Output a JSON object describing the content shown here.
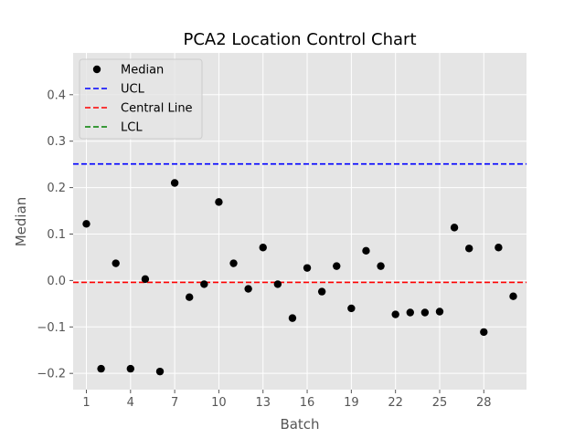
{
  "chart_data": {
    "type": "scatter",
    "title": "PCA2 Location Control Chart",
    "xlabel": "Batch",
    "ylabel": "Median",
    "xlim": [
      0.1,
      30.9
    ],
    "ylim": [
      -0.235,
      0.49
    ],
    "xticks": [
      1,
      4,
      7,
      10,
      13,
      16,
      19,
      22,
      25,
      28
    ],
    "yticks": [
      -0.2,
      -0.1,
      0.0,
      0.1,
      0.2,
      0.3,
      0.4
    ],
    "ytick_labels": [
      "−0.2",
      "−0.1",
      "0.0",
      "0.1",
      "0.2",
      "0.3",
      "0.4"
    ],
    "grid": true,
    "legend_position": "top-left",
    "series": [
      {
        "name": "Median",
        "color": "#000000",
        "marker": "circle",
        "x": [
          1,
          2,
          3,
          4,
          5,
          6,
          7,
          8,
          9,
          10,
          11,
          12,
          13,
          14,
          15,
          16,
          17,
          18,
          19,
          20,
          21,
          22,
          23,
          24,
          25,
          26,
          27,
          28,
          29,
          30
        ],
        "y": [
          0.122,
          -0.19,
          0.037,
          -0.19,
          0.003,
          -0.196,
          0.21,
          -0.036,
          -0.008,
          0.169,
          0.037,
          -0.018,
          0.071,
          -0.008,
          -0.081,
          0.027,
          -0.024,
          0.031,
          -0.06,
          0.064,
          0.031,
          -0.073,
          -0.069,
          -0.069,
          -0.067,
          0.114,
          0.069,
          -0.111,
          0.071,
          -0.034
        ]
      }
    ],
    "lines": [
      {
        "name": "UCL",
        "y": 0.251,
        "color": "#0000ff",
        "style": "dashed"
      },
      {
        "name": "Central Line",
        "y": -0.004,
        "color": "#ff0000",
        "style": "dashed"
      },
      {
        "name": "LCL",
        "y": null,
        "color": "#008000",
        "style": "dashed"
      }
    ]
  }
}
